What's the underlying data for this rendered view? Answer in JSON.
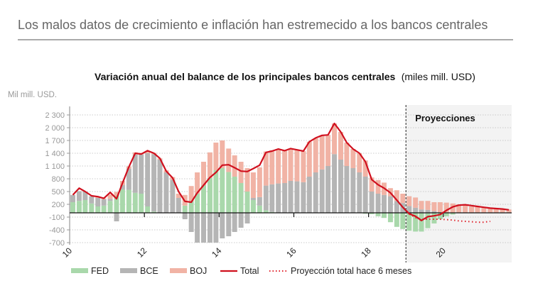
{
  "headline": "Los malos datos de crecimiento e inflación han estremecido a los bancos centrales",
  "chart_data": {
    "type": "bar",
    "stacked": true,
    "title": "Variación anual del balance de los principales bancos centrales",
    "subtitle": "(miles mill. USD)",
    "ylabel": "Mil mill. USD.",
    "ylim": [
      -700,
      2300
    ],
    "yticks": [
      2300,
      2000,
      1700,
      1400,
      1100,
      800,
      500,
      200,
      -100,
      -400,
      -700
    ],
    "ytick_labels": [
      "2 300",
      "2 000",
      "1 700",
      "1 400",
      "1 100",
      "800",
      "500",
      "200",
      "-100",
      "-400",
      "-700"
    ],
    "xlim": [
      2010,
      2021.83
    ],
    "xticks": [
      2010,
      2012,
      2014,
      2016,
      2018,
      2020
    ],
    "xtick_labels": [
      "10",
      "12",
      "14",
      "16",
      "18",
      "20"
    ],
    "grid": true,
    "legend_position": "bottom",
    "projection_start": 2019,
    "projection_label": "Proyecciones",
    "x": [
      2010.0,
      2010.17,
      2010.33,
      2010.5,
      2010.67,
      2010.83,
      2011.0,
      2011.17,
      2011.33,
      2011.5,
      2011.67,
      2011.83,
      2012.0,
      2012.17,
      2012.33,
      2012.5,
      2012.67,
      2012.83,
      2013.0,
      2013.17,
      2013.33,
      2013.5,
      2013.67,
      2013.83,
      2014.0,
      2014.17,
      2014.33,
      2014.5,
      2014.67,
      2014.83,
      2015.0,
      2015.17,
      2015.33,
      2015.5,
      2015.67,
      2015.83,
      2016.0,
      2016.17,
      2016.33,
      2016.5,
      2016.67,
      2016.83,
      2017.0,
      2017.17,
      2017.33,
      2017.5,
      2017.67,
      2017.83,
      2018.0,
      2018.17,
      2018.33,
      2018.5,
      2018.67,
      2018.83,
      2019.0,
      2019.17,
      2019.33,
      2019.5,
      2019.67,
      2019.83,
      2020.0,
      2020.17,
      2020.33,
      2020.5,
      2020.67,
      2020.83,
      2021.0,
      2021.17,
      2021.33,
      2021.5,
      2021.67
    ],
    "series": [
      {
        "name": "FED",
        "kind": "bar",
        "color": "#a9d8ab",
        "values": [
          250,
          280,
          300,
          220,
          150,
          170,
          280,
          400,
          550,
          540,
          470,
          450,
          150,
          30,
          0,
          0,
          0,
          0,
          170,
          280,
          450,
          650,
          820,
          1000,
          1050,
          960,
          850,
          700,
          500,
          300,
          170,
          60,
          20,
          0,
          0,
          0,
          0,
          0,
          0,
          0,
          0,
          0,
          0,
          0,
          0,
          0,
          0,
          -20,
          -30,
          -80,
          -120,
          -220,
          -330,
          -380,
          -420,
          -440,
          -440,
          -360,
          -250,
          -150,
          -80,
          -40,
          0,
          0,
          0,
          0,
          0,
          0,
          0,
          0,
          0
        ]
      },
      {
        "name": "BCE",
        "kind": "bar",
        "color": "#b5b5b5",
        "values": [
          170,
          230,
          200,
          170,
          200,
          150,
          50,
          -200,
          100,
          500,
          900,
          920,
          1250,
          1350,
          1250,
          950,
          780,
          350,
          -150,
          -450,
          -700,
          -700,
          -700,
          -700,
          -600,
          -550,
          -450,
          -350,
          -250,
          50,
          200,
          580,
          650,
          690,
          700,
          750,
          740,
          720,
          850,
          950,
          1020,
          1100,
          1380,
          1250,
          1100,
          1050,
          950,
          850,
          500,
          450,
          420,
          390,
          280,
          230,
          160,
          120,
          80,
          70,
          40,
          15,
          0,
          0,
          0,
          0,
          0,
          0,
          0,
          0,
          0,
          0,
          0
        ]
      },
      {
        "name": "BOJ",
        "kind": "bar",
        "color": "#f1b3a5",
        "values": [
          0,
          0,
          0,
          0,
          20,
          20,
          100,
          90,
          100,
          50,
          50,
          40,
          30,
          30,
          30,
          50,
          60,
          100,
          250,
          350,
          500,
          550,
          600,
          650,
          650,
          550,
          500,
          500,
          550,
          600,
          700,
          800,
          800,
          810,
          760,
          760,
          740,
          730,
          820,
          800,
          800,
          730,
          720,
          650,
          550,
          450,
          450,
          380,
          330,
          320,
          290,
          190,
          250,
          220,
          230,
          240,
          200,
          210,
          210,
          235,
          240,
          220,
          200,
          180,
          150,
          140,
          120,
          110,
          100,
          90,
          80
        ]
      },
      {
        "name": "Total",
        "kind": "line",
        "color": "#d0101e",
        "values": [
          420,
          580,
          500,
          400,
          380,
          340,
          480,
          330,
          700,
          1080,
          1400,
          1380,
          1460,
          1400,
          1280,
          980,
          820,
          500,
          270,
          250,
          470,
          650,
          830,
          950,
          1120,
          1130,
          1060,
          980,
          970,
          1040,
          1120,
          1420,
          1450,
          1500,
          1460,
          1510,
          1480,
          1450,
          1670,
          1760,
          1820,
          1830,
          2100,
          1900,
          1650,
          1500,
          1400,
          1200,
          780,
          660,
          580,
          470,
          300,
          130,
          -20,
          -80,
          -180,
          -90,
          -70,
          -40,
          60,
          140,
          180,
          190,
          170,
          150,
          130,
          110,
          100,
          90,
          70
        ]
      },
      {
        "name": "Proyección total hace 6 meses",
        "kind": "dotted-line",
        "color": "#e0202a",
        "x": [
          2019.0,
          2019.17,
          2019.33,
          2019.5,
          2019.67,
          2019.83,
          2020.0,
          2020.17,
          2020.33,
          2020.5,
          2020.67,
          2020.83,
          2021.0,
          2021.17
        ],
        "values": [
          -30,
          -110,
          -150,
          -150,
          -150,
          -150,
          -160,
          -170,
          -190,
          -200,
          -210,
          -220,
          -220,
          -200
        ]
      }
    ]
  }
}
